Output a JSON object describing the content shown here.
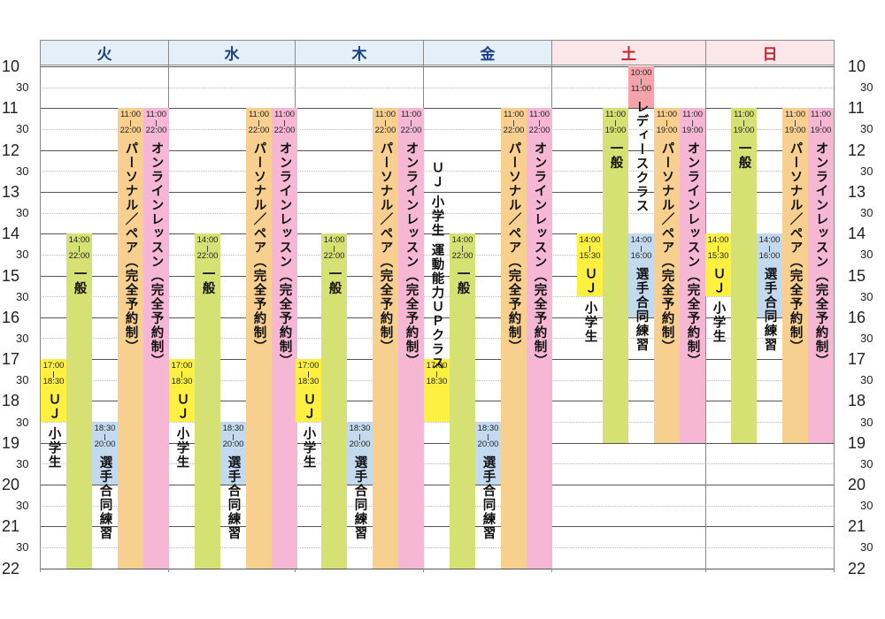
{
  "days": [
    {
      "name": "火",
      "color": "#1f3f8a"
    },
    {
      "name": "水",
      "color": "#1f3f8a"
    },
    {
      "name": "木",
      "color": "#1f3f8a"
    },
    {
      "name": "金",
      "color": "#1f3f8a"
    },
    {
      "name": "土",
      "color": "#c0262e"
    },
    {
      "name": "日",
      "color": "#c0262e"
    }
  ],
  "hours": [
    10,
    11,
    12,
    13,
    14,
    15,
    16,
    17,
    18,
    19,
    20,
    21,
    22
  ],
  "half_label": "30",
  "colors": {
    "weekday_header": "#e4f0f8",
    "weekend_header": "#fbe6ea",
    "general": "#d5e173",
    "uj": "#fdf040",
    "senshu": "#c2d9ee",
    "personal": "#f7cf8f",
    "online": "#f5b7d3",
    "lady": "#f4a3aa"
  },
  "classes": [
    {
      "day": 0,
      "col": 1,
      "start": 14,
      "end": 22,
      "start_label": "14:00",
      "end_label": "22:00",
      "color": "general",
      "title": "一般",
      "text_below": false
    },
    {
      "day": 0,
      "col": 0,
      "start": 17,
      "end": 18.5,
      "start_label": "17:00",
      "end_label": "18:30",
      "color": "uj",
      "title": "ＵＪ 小学生",
      "text_below": true
    },
    {
      "day": 0,
      "col": 2,
      "start": 18.5,
      "end": 20,
      "start_label": "18:30",
      "end_label": "20:00",
      "color": "senshu",
      "title": "選手合同練習",
      "text_below": true
    },
    {
      "day": 0,
      "col": 3,
      "start": 11,
      "end": 22,
      "start_label": "11:00",
      "end_label": "22:00",
      "color": "personal",
      "title": "パーソナル／ペア（完全予約制）",
      "text_below": false
    },
    {
      "day": 0,
      "col": 4,
      "start": 11,
      "end": 22,
      "start_label": "11:00",
      "end_label": "22:00",
      "color": "online",
      "title": "オンラインレッスン（完全予約制）",
      "text_below": false
    },
    {
      "day": 1,
      "col": 1,
      "start": 14,
      "end": 22,
      "start_label": "14:00",
      "end_label": "22:00",
      "color": "general",
      "title": "一般",
      "text_below": false
    },
    {
      "day": 1,
      "col": 0,
      "start": 17,
      "end": 18.5,
      "start_label": "17:00",
      "end_label": "18:30",
      "color": "uj",
      "title": "ＵＪ 小学生",
      "text_below": true
    },
    {
      "day": 1,
      "col": 2,
      "start": 18.5,
      "end": 20,
      "start_label": "18:30",
      "end_label": "20:00",
      "color": "senshu",
      "title": "選手合同練習",
      "text_below": true
    },
    {
      "day": 1,
      "col": 3,
      "start": 11,
      "end": 22,
      "start_label": "11:00",
      "end_label": "22:00",
      "color": "personal",
      "title": "パーソナル／ペア（完全予約制）",
      "text_below": false
    },
    {
      "day": 1,
      "col": 4,
      "start": 11,
      "end": 22,
      "start_label": "11:00",
      "end_label": "22:00",
      "color": "online",
      "title": "オンラインレッスン（完全予約制）",
      "text_below": false
    },
    {
      "day": 2,
      "col": 1,
      "start": 14,
      "end": 22,
      "start_label": "14:00",
      "end_label": "22:00",
      "color": "general",
      "title": "一般",
      "text_below": false
    },
    {
      "day": 2,
      "col": 0,
      "start": 17,
      "end": 18.5,
      "start_label": "17:00",
      "end_label": "18:30",
      "color": "uj",
      "title": "ＵＪ 小学生",
      "text_below": true
    },
    {
      "day": 2,
      "col": 2,
      "start": 18.5,
      "end": 20,
      "start_label": "18:30",
      "end_label": "20:00",
      "color": "senshu",
      "title": "選手合同練習",
      "text_below": true
    },
    {
      "day": 2,
      "col": 3,
      "start": 11,
      "end": 22,
      "start_label": "11:00",
      "end_label": "22:00",
      "color": "personal",
      "title": "パーソナル／ペア（完全予約制）",
      "text_below": false
    },
    {
      "day": 2,
      "col": 4,
      "start": 11,
      "end": 22,
      "start_label": "11:00",
      "end_label": "22:00",
      "color": "online",
      "title": "オンラインレッスン（完全予約制）",
      "text_below": false
    },
    {
      "day": 3,
      "col": 1,
      "start": 14,
      "end": 22,
      "start_label": "14:00",
      "end_label": "22:00",
      "color": "general",
      "title": "一般",
      "text_below": false
    },
    {
      "day": 3,
      "col": 0,
      "start": 17,
      "end": 18.5,
      "start_label": "17:00",
      "end_label": "18:30",
      "color": "uj",
      "title": "ＵＪ 小学生 運動能力ＵＰクラス",
      "text_above": true
    },
    {
      "day": 3,
      "col": 2,
      "start": 18.5,
      "end": 20,
      "start_label": "18:30",
      "end_label": "20:00",
      "color": "senshu",
      "title": "選手合同練習",
      "text_below": true
    },
    {
      "day": 3,
      "col": 3,
      "start": 11,
      "end": 22,
      "start_label": "11:00",
      "end_label": "22:00",
      "color": "personal",
      "title": "パーソナル／ペア（完全予約制）",
      "text_below": false
    },
    {
      "day": 3,
      "col": 4,
      "start": 11,
      "end": 22,
      "start_label": "11:00",
      "end_label": "22:00",
      "color": "online",
      "title": "オンラインレッスン（完全予約制）",
      "text_below": false
    },
    {
      "day": 4,
      "col": 0,
      "start": 14,
      "end": 15.5,
      "start_label": "14:00",
      "end_label": "15:30",
      "color": "uj",
      "title": "ＵＪ 小学生",
      "text_below": true
    },
    {
      "day": 4,
      "col": 1,
      "start": 11,
      "end": 19,
      "start_label": "11:00",
      "end_label": "19:00",
      "color": "general",
      "title": "一般",
      "text_below": false
    },
    {
      "day": 4,
      "col": 2,
      "start": 14,
      "end": 16,
      "start_label": "14:00",
      "end_label": "16:00",
      "color": "senshu",
      "title": "選手合同練習",
      "text_below": true
    },
    {
      "day": 4,
      "col": 2,
      "start": 10,
      "end": 11,
      "start_label": "10:00",
      "end_label": "11:00",
      "color": "lady",
      "title": "レディースクラス",
      "text_below": true
    },
    {
      "day": 4,
      "col": 3,
      "start": 11,
      "end": 19,
      "start_label": "11:00",
      "end_label": "19:00",
      "color": "personal",
      "title": "パーソナル／ペア（完全予約制）",
      "text_below": false
    },
    {
      "day": 4,
      "col": 4,
      "start": 11,
      "end": 19,
      "start_label": "11:00",
      "end_label": "19:00",
      "color": "online",
      "title": "オンラインレッスン（完全予約制）",
      "text_below": false
    },
    {
      "day": 5,
      "col": 0,
      "start": 14,
      "end": 15.5,
      "start_label": "14:00",
      "end_label": "15:30",
      "color": "uj",
      "title": "ＵＪ 小学生",
      "text_below": true
    },
    {
      "day": 5,
      "col": 1,
      "start": 11,
      "end": 19,
      "start_label": "11:00",
      "end_label": "19:00",
      "color": "general",
      "title": "一般",
      "text_below": false
    },
    {
      "day": 5,
      "col": 2,
      "start": 14,
      "end": 16,
      "start_label": "14:00",
      "end_label": "16:00",
      "color": "senshu",
      "title": "選手合同練習",
      "text_below": true
    },
    {
      "day": 5,
      "col": 3,
      "start": 11,
      "end": 19,
      "start_label": "11:00",
      "end_label": "19:00",
      "color": "personal",
      "title": "パーソナル／ペア（完全予約制）",
      "text_below": false
    },
    {
      "day": 5,
      "col": 4,
      "start": 11,
      "end": 19,
      "start_label": "11:00",
      "end_label": "19:00",
      "color": "online",
      "title": "オンラインレッスン（完全予約制）",
      "text_below": false
    }
  ]
}
